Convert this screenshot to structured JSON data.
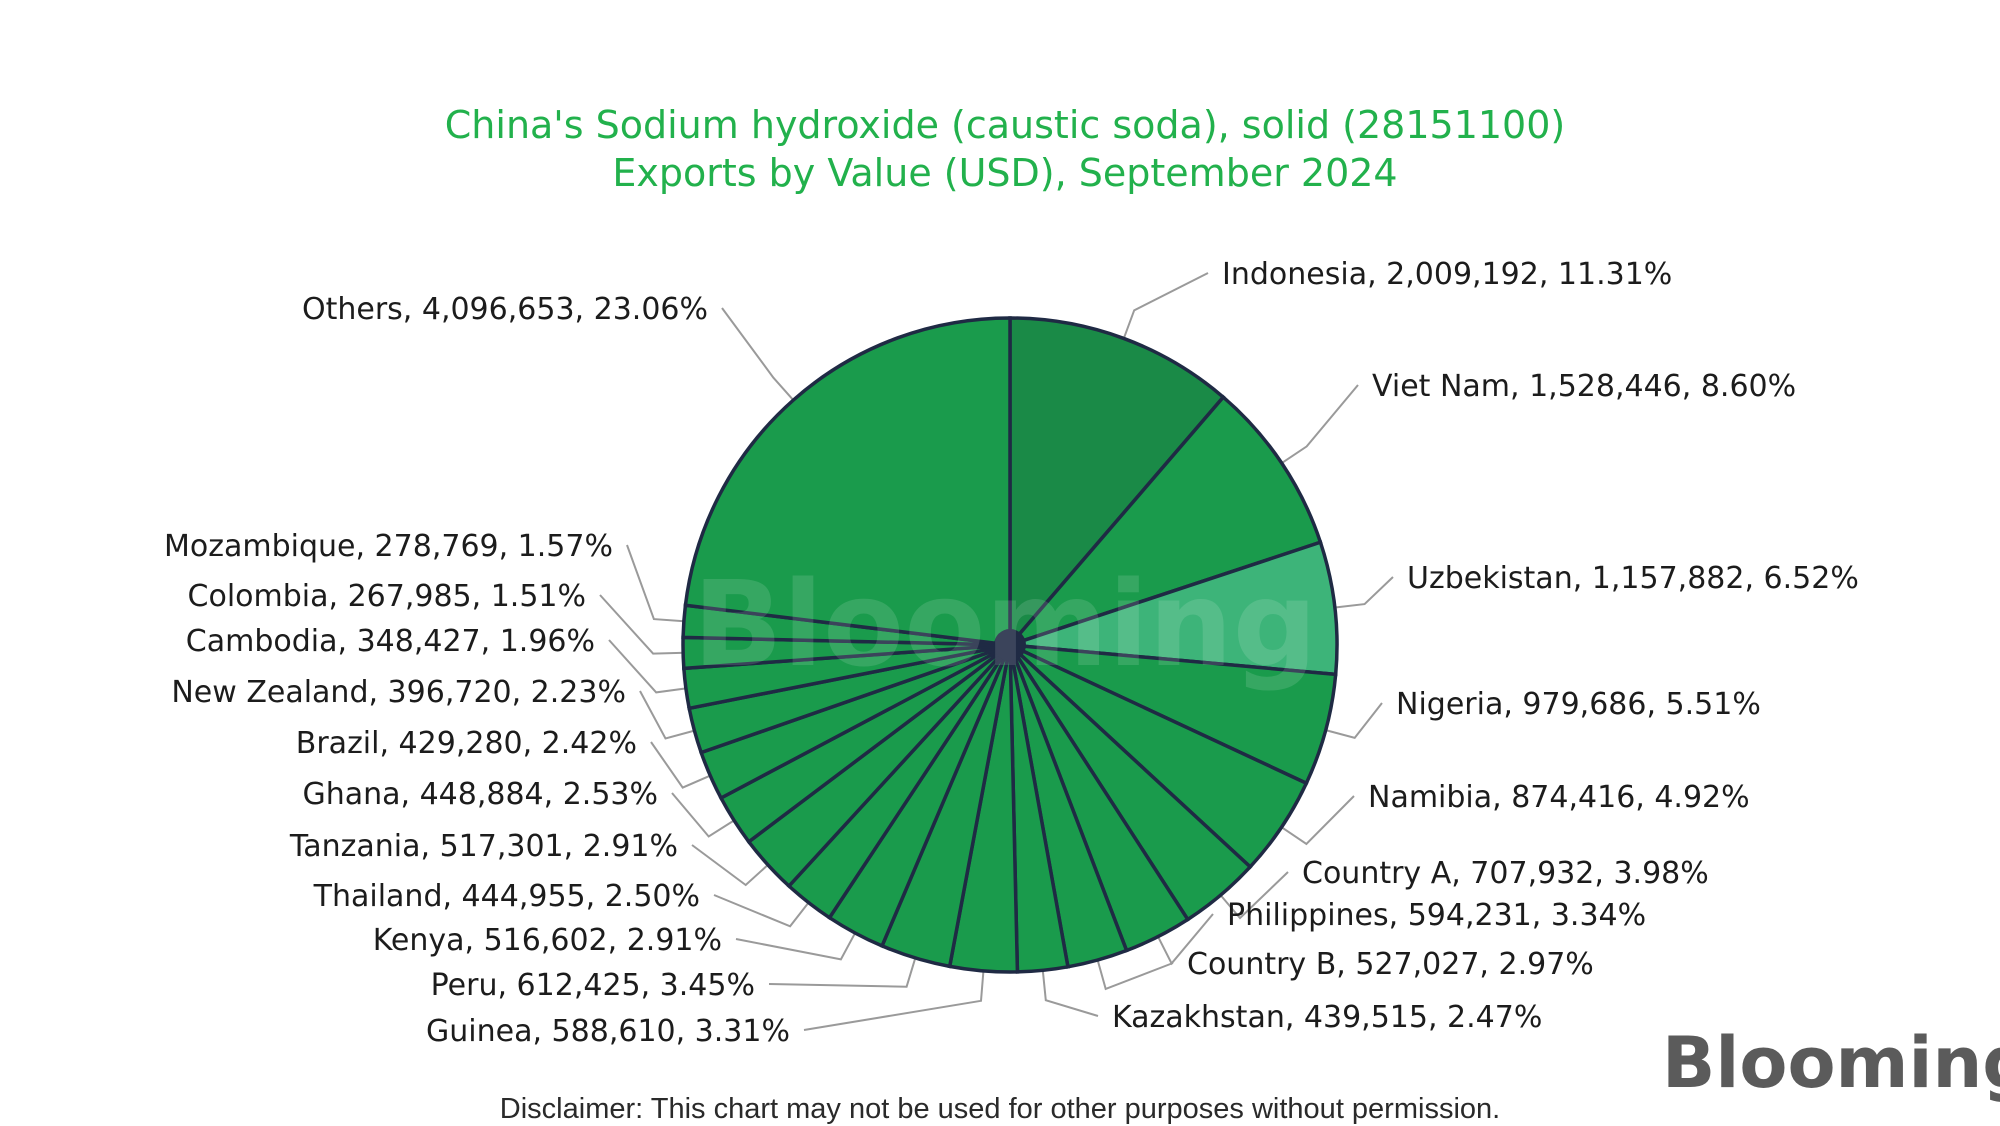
{
  "chart_data": {
    "type": "pie",
    "title": "China's Sodium hydroxide (caustic soda), solid (28151100)",
    "subtitle": "Exports by Value (USD), September 2024",
    "slices": [
      {
        "label": "Indonesia, 2,009,192, 11.31%",
        "name": "Indonesia",
        "value": 2009192,
        "percent": 11.31,
        "color": "#1a8a47"
      },
      {
        "label": "Viet Nam, 1,528,446, 8.60%",
        "name": "Viet Nam",
        "value": 1528446,
        "percent": 8.6,
        "color": "#1a9b4c"
      },
      {
        "label": "Uzbekistan, 1,157,882, 6.52%",
        "name": "Uzbekistan",
        "value": 1157882,
        "percent": 6.52,
        "color": "#3db479"
      },
      {
        "label": "Nigeria, 979,686, 5.51%",
        "name": "Nigeria",
        "value": 979686,
        "percent": 5.51,
        "color": "#1a9b4c"
      },
      {
        "label": "Namibia, 874,416, 4.92%",
        "name": "Namibia",
        "value": 874416,
        "percent": 4.92,
        "color": "#1a9b4c"
      },
      {
        "label": "Country A, 707,932, 3.98%",
        "name": "Country A",
        "value": 707932,
        "percent": 3.98,
        "color": "#1a9b4c"
      },
      {
        "label": "Philippines, 594,231, 3.34%",
        "name": "Philippines",
        "value": 594231,
        "percent": 3.34,
        "color": "#1a9b4c"
      },
      {
        "label": "Country B, 527,027, 2.97%",
        "name": "Country B",
        "value": 527027,
        "percent": 2.97,
        "color": "#1a9b4c"
      },
      {
        "label": "Kazakhstan, 439,515, 2.47%",
        "name": "Kazakhstan",
        "value": 439515,
        "percent": 2.47,
        "color": "#1a9b4c"
      },
      {
        "label": "Guinea, 588,610, 3.31%",
        "name": "Guinea",
        "value": 588610,
        "percent": 3.31,
        "color": "#1a9b4c"
      },
      {
        "label": "Peru, 612,425, 3.45%",
        "name": "Peru",
        "value": 612425,
        "percent": 3.45,
        "color": "#1a9b4c"
      },
      {
        "label": "Kenya, 516,602, 2.91%",
        "name": "Kenya",
        "value": 516602,
        "percent": 2.91,
        "color": "#1a9b4c"
      },
      {
        "label": "Thailand, 444,955, 2.50%",
        "name": "Thailand",
        "value": 444955,
        "percent": 2.5,
        "color": "#1a9b4c"
      },
      {
        "label": "Tanzania, 517,301, 2.91%",
        "name": "Tanzania",
        "value": 517301,
        "percent": 2.91,
        "color": "#1a9b4c"
      },
      {
        "label": "Ghana, 448,884, 2.53%",
        "name": "Ghana",
        "value": 448884,
        "percent": 2.53,
        "color": "#1a9b4c"
      },
      {
        "label": "Brazil, 429,280, 2.42%",
        "name": "Brazil",
        "value": 429280,
        "percent": 2.42,
        "color": "#1a9b4c"
      },
      {
        "label": "New Zealand, 396,720, 2.23%",
        "name": "New Zealand",
        "value": 396720,
        "percent": 2.23,
        "color": "#1a9b4c"
      },
      {
        "label": "Cambodia, 348,427, 1.96%",
        "name": "Cambodia",
        "value": 348427,
        "percent": 1.96,
        "color": "#1a9b4c"
      },
      {
        "label": "Colombia, 267,985, 1.51%",
        "name": "Colombia",
        "value": 267985,
        "percent": 1.51,
        "color": "#1a9b4c"
      },
      {
        "label": "Mozambique, 278,769, 1.57%",
        "name": "Mozambique",
        "value": 278769,
        "percent": 1.57,
        "color": "#1a9b4c"
      },
      {
        "label": "Others, 4,096,653, 23.06%",
        "name": "Others",
        "value": 4096653,
        "percent": 23.06,
        "color": "#1a9b4c"
      }
    ],
    "start": "12 o'clock",
    "direction": "clockwise"
  },
  "watermark": "Blooming",
  "logo": "Blooming",
  "disclaimer": "Disclaimer: This chart may not be used for other purposes without permission."
}
